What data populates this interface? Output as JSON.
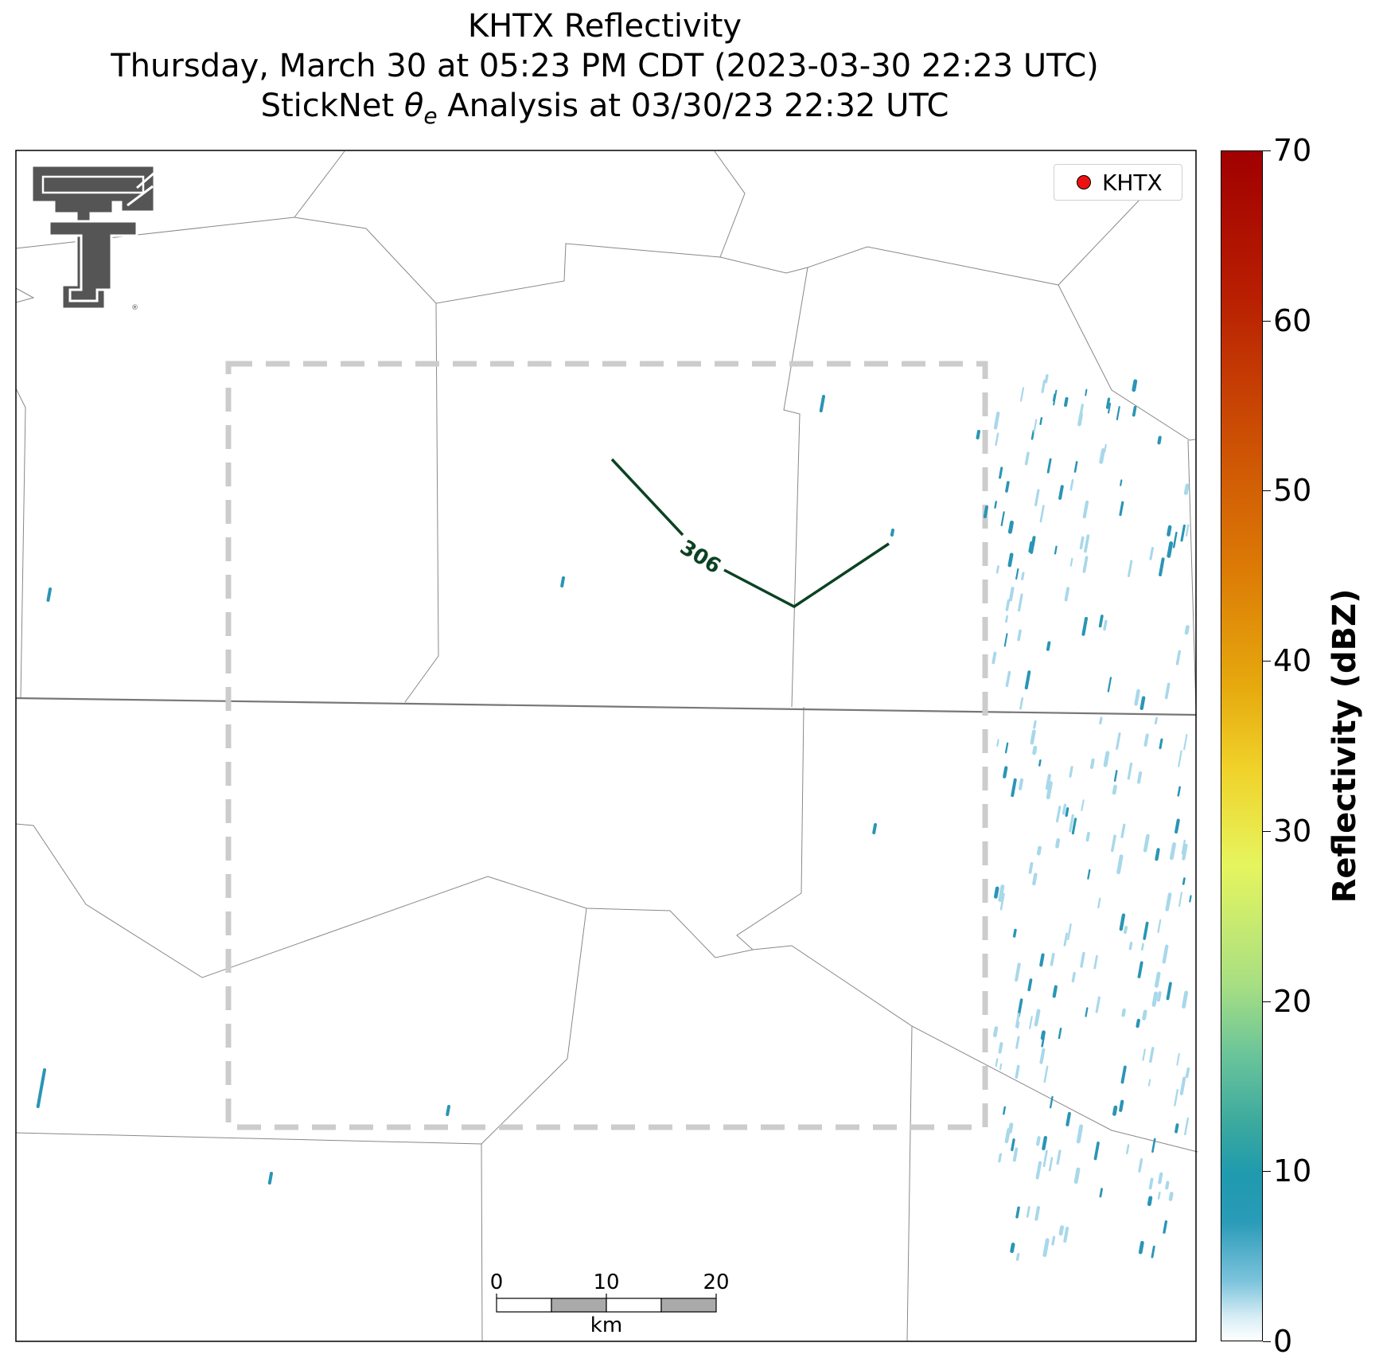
{
  "title": {
    "line1": "KHTX Reflectivity",
    "line2": "Thursday, March 30 at 05:23 PM CDT (2023-03-30 22:23 UTC)",
    "line3_prefix": "StickNet ",
    "line3_symbol": "θ",
    "line3_sub": "e",
    "line3_suffix": " Analysis at 03/30/23 22:32 UTC"
  },
  "legend": {
    "label": "KHTX",
    "marker_color": "#ee1111"
  },
  "contour": {
    "label": "306",
    "color": "#0b4223"
  },
  "colorbar": {
    "title": "Reflectivity (dBZ)",
    "min": 0,
    "max": 70,
    "ticks": [
      "0",
      "10",
      "20",
      "30",
      "40",
      "50",
      "60",
      "70"
    ]
  },
  "scale_bar": {
    "ticks": [
      "0",
      "10",
      "20"
    ],
    "unit": "km"
  },
  "colors": {
    "boundary": "#888888",
    "state_line": "#777777",
    "domain_box": "#cccccc",
    "echo_light": "#a8d8ea",
    "echo_dark": "#2a95b5"
  },
  "logo_icon": "double-t-logo-icon"
}
